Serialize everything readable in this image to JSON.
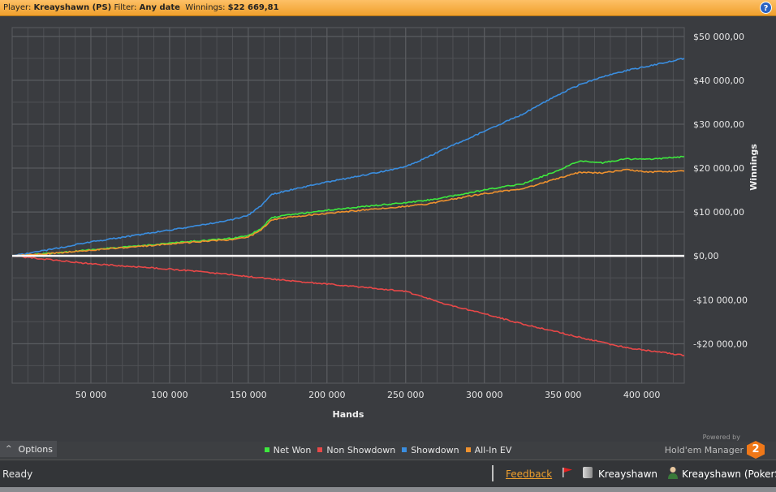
{
  "header": {
    "player_label": "Player:",
    "player_value": "Kreayshawn (PS)",
    "filter_label": "Filter:",
    "filter_value": "Any date",
    "winnings_label": "Winnings:",
    "winnings_value": "$22 669,81",
    "help_icon": "question-icon",
    "help_glyph": "?"
  },
  "options": {
    "label": "Options",
    "icon": "chevron-up-icon",
    "glyph": "^"
  },
  "powered": {
    "line1": "Powered by",
    "line2": "Hold'em Manager",
    "logo_text": "2"
  },
  "status": {
    "ready": "Ready",
    "feedback": "Feedback",
    "database": "Kreayshawn",
    "user": "Kreayshawn (PokerSta",
    "flag_icon": "red-flag-icon",
    "db_icon": "database-icon",
    "user_icon": "user-icon"
  },
  "colors": {
    "net_won": "#3ee83e",
    "non_showdown": "#e84848",
    "showdown": "#3a8ee0",
    "allin_ev": "#f0922e",
    "zero_line": "#ffffff",
    "accent": "#f0a02c"
  },
  "chart_data": {
    "type": "line",
    "xlabel": "Hands",
    "ylabel": "Winnings",
    "xlim": [
      0,
      427000
    ],
    "ylim": [
      -29000,
      52000
    ],
    "x_ticks": [
      50000,
      100000,
      150000,
      200000,
      250000,
      300000,
      350000,
      400000
    ],
    "x_tick_labels": [
      "50 000",
      "100 000",
      "150 000",
      "200 000",
      "250 000",
      "300 000",
      "350 000",
      "400 000"
    ],
    "y_ticks": [
      50000,
      40000,
      30000,
      20000,
      10000,
      0,
      -10000,
      -20000
    ],
    "y_tick_labels": [
      "$50 000,00",
      "$40 000,00",
      "$30 000,00",
      "$20 000,00",
      "$10 000,00",
      "$0,00",
      "-$10 000,00",
      "-$20 000,00"
    ],
    "grid": true,
    "legend_position": "bottom",
    "x": [
      0,
      25000,
      50000,
      75000,
      100000,
      125000,
      140000,
      150000,
      158000,
      165000,
      175000,
      200000,
      225000,
      250000,
      262000,
      275000,
      300000,
      325000,
      345000,
      360000,
      375000,
      390000,
      405000,
      427000
    ],
    "series": [
      {
        "name": "Net Won",
        "values": [
          0,
          600,
          1400,
          2100,
          2900,
          3600,
          4000,
          4700,
          6200,
          8700,
          9300,
          10400,
          11300,
          12100,
          12600,
          13300,
          15000,
          16500,
          19200,
          21600,
          21200,
          22100,
          22000,
          22600
        ]
      },
      {
        "name": "Non Showdown",
        "values": [
          0,
          -900,
          -1800,
          -2400,
          -3000,
          -3800,
          -4300,
          -4700,
          -5000,
          -5300,
          -5600,
          -6400,
          -7200,
          -8100,
          -9400,
          -11000,
          -13200,
          -15600,
          -17200,
          -18500,
          -19700,
          -20900,
          -21600,
          -22700
        ]
      },
      {
        "name": "Showdown",
        "values": [
          0,
          1500,
          3200,
          4500,
          5900,
          7300,
          8300,
          9300,
          11400,
          14000,
          14900,
          16800,
          18500,
          20300,
          22200,
          24400,
          28400,
          32400,
          36400,
          38900,
          40800,
          42200,
          43300,
          45000
        ]
      },
      {
        "name": "All-In EV",
        "values": [
          0,
          550,
          1300,
          2000,
          2700,
          3400,
          3700,
          4300,
          5800,
          8200,
          8800,
          9700,
          10500,
          11300,
          11700,
          12600,
          14200,
          15300,
          17500,
          19000,
          18900,
          19600,
          19100,
          19300
        ]
      }
    ]
  }
}
